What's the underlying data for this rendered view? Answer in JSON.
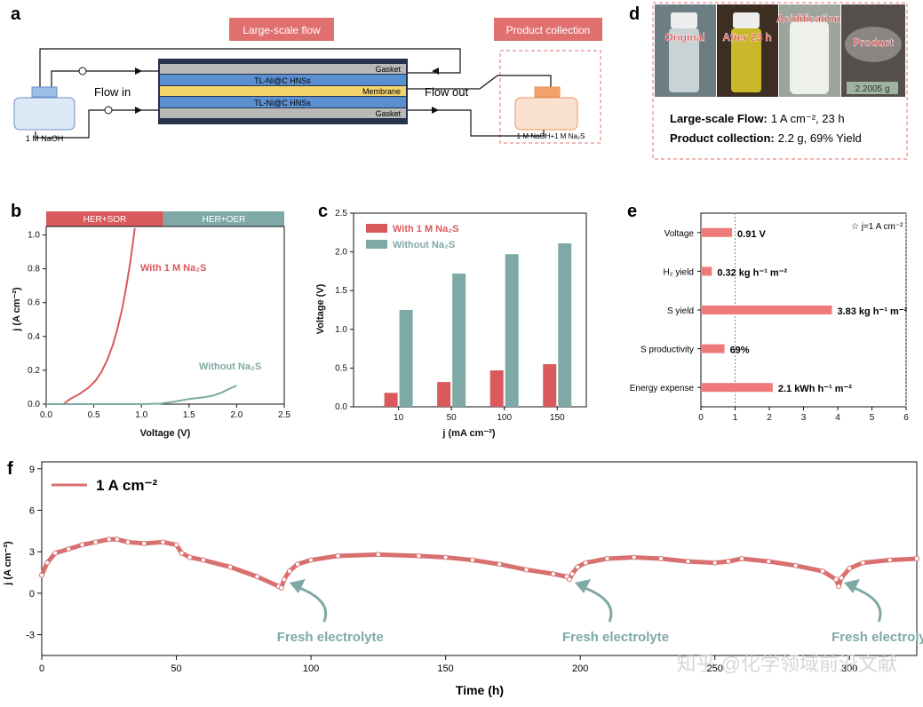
{
  "panel_a": {
    "label": "a",
    "title": "Large-scale flow",
    "collection_title": "Product collection",
    "layers": [
      "Gasket",
      "TL-Ni@C HNSs",
      "Membrane",
      "TL-Ni@C HNSs",
      "Gasket"
    ],
    "flow_in": "Flow in",
    "flow_out": "Flow out",
    "reservoir_left": "1 M NaOH",
    "reservoir_right": "1 M NaOH+1 M Na₂S",
    "colors": {
      "accent_red": "#e06b6b",
      "gasket": "#b9b9b9",
      "electrode": "#5a8fd0",
      "membrane": "#f3d36b",
      "frame": "#27324d"
    }
  },
  "panel_d": {
    "label": "d",
    "photo_labels": [
      "Original",
      "After 23 h",
      "Acidification",
      "Product"
    ],
    "balance_reading": "2.2005 g",
    "line1_key": "Large-scale Flow:",
    "line1_val": "1 A cm⁻², 23 h",
    "line2_key": "Product collection:",
    "line2_val": "2.2 g, 69% Yield"
  },
  "chart_data": [
    {
      "panel": "b",
      "type": "line",
      "xlabel": "Voltage (V)",
      "ylabel": "j (A cm⁻²)",
      "xlim": [
        0,
        2.5
      ],
      "ylim": [
        0,
        1.05
      ],
      "xticks": [
        "0.0",
        "0.5",
        "1.0",
        "1.5",
        "2.0",
        "2.5"
      ],
      "yticks": [
        "0.0",
        "0.2",
        "0.4",
        "0.6",
        "0.8",
        "1.0"
      ],
      "regions": [
        {
          "label": "HER+SOR",
          "from": 0,
          "to": 1.23,
          "color": "#d9595c"
        },
        {
          "label": "HER+OER",
          "from": 1.23,
          "to": 2.5,
          "color": "#7fa9a6"
        }
      ],
      "series": [
        {
          "name": "With 1 M Na₂S",
          "color": "#d9595c",
          "x": [
            0.18,
            0.25,
            0.35,
            0.45,
            0.52,
            0.58,
            0.64,
            0.7,
            0.75,
            0.8,
            0.84,
            0.88,
            0.91,
            0.93
          ],
          "y": [
            0.0,
            0.03,
            0.06,
            0.1,
            0.14,
            0.19,
            0.26,
            0.35,
            0.45,
            0.57,
            0.69,
            0.83,
            0.95,
            1.04
          ]
        },
        {
          "name": "Without Na₂S",
          "color": "#7fa9a6",
          "x": [
            0.0,
            0.5,
            1.0,
            1.2,
            1.35,
            1.5,
            1.65,
            1.75,
            1.85,
            1.92,
            2.0
          ],
          "y": [
            0.0,
            0.0,
            0.0,
            0.003,
            0.015,
            0.03,
            0.04,
            0.05,
            0.07,
            0.09,
            0.11
          ]
        }
      ]
    },
    {
      "panel": "c",
      "type": "bar",
      "xlabel": "j (mA cm⁻²)",
      "ylabel": "Voltage (V)",
      "ylim": [
        0,
        2.5
      ],
      "yticks": [
        "0.0",
        "0.5",
        "1.0",
        "1.5",
        "2.0",
        "2.5"
      ],
      "categories": [
        "10",
        "50",
        "100",
        "150"
      ],
      "series": [
        {
          "name": "With 1 M Na₂S",
          "color": "#d9595c",
          "values": [
            0.18,
            0.32,
            0.47,
            0.55
          ]
        },
        {
          "name": "Without Na₂S",
          "color": "#7fa9a6",
          "values": [
            1.25,
            1.72,
            1.97,
            2.11
          ]
        }
      ]
    },
    {
      "panel": "e",
      "type": "bar",
      "orientation": "horizontal",
      "legend": "☆ j=1 A cm⁻²",
      "xlim": [
        0,
        6
      ],
      "xticks": [
        "0",
        "1",
        "2",
        "3",
        "4",
        "5",
        "6"
      ],
      "color": "#f07a7a",
      "categories": [
        "Voltage",
        "H₂ yield",
        "S yield",
        "S productivity",
        "Energy expense"
      ],
      "values": [
        0.91,
        0.32,
        3.83,
        0.69,
        2.1
      ],
      "value_labels": [
        "0.91 V",
        "0.32 kg h⁻¹ m⁻²",
        "3.83 kg h⁻¹ m⁻²",
        "69%",
        "2.1 kWh h⁻¹ m⁻²"
      ]
    },
    {
      "panel": "f",
      "type": "scatter",
      "xlabel": "Time (h)",
      "ylabel": "j (A cm⁻²)",
      "xlim": [
        0,
        325
      ],
      "ylim": [
        -4.5,
        9.5
      ],
      "xticks": [
        "0",
        "50",
        "100",
        "150",
        "200",
        "250",
        "300"
      ],
      "yticks": [
        "-3",
        "0",
        "3",
        "6",
        "9"
      ],
      "series": [
        {
          "name": "1 A cm⁻²",
          "color": "#d97070",
          "x": [
            0,
            2,
            5,
            10,
            15,
            20,
            25,
            28,
            32,
            38,
            45,
            50,
            52,
            55,
            60,
            70,
            80,
            88,
            89,
            90,
            92,
            95,
            100,
            110,
            125,
            140,
            150,
            160,
            170,
            180,
            190,
            195,
            196,
            197,
            199,
            202,
            210,
            220,
            230,
            240,
            250,
            255,
            260,
            270,
            280,
            290,
            295,
            296,
            297,
            300,
            305,
            315,
            325
          ],
          "y": [
            1.3,
            2.2,
            2.9,
            3.2,
            3.5,
            3.7,
            3.9,
            3.9,
            3.7,
            3.6,
            3.7,
            3.5,
            2.9,
            2.6,
            2.4,
            1.9,
            1.2,
            0.5,
            0.4,
            1.0,
            1.6,
            2.1,
            2.4,
            2.7,
            2.8,
            2.7,
            2.6,
            2.4,
            2.1,
            1.7,
            1.4,
            1.2,
            1.0,
            1.4,
            1.9,
            2.2,
            2.5,
            2.6,
            2.5,
            2.3,
            2.2,
            2.3,
            2.5,
            2.3,
            2.0,
            1.6,
            1.0,
            0.5,
            1.1,
            1.8,
            2.2,
            2.4,
            2.5
          ]
        }
      ],
      "annotations": [
        {
          "text": "Fresh electrolyte",
          "at_x": 90
        },
        {
          "text": "Fresh electrolyte",
          "at_x": 196
        },
        {
          "text": "Fresh electrolyte",
          "at_x": 296
        }
      ]
    }
  ],
  "watermark": "知乎 @化学领域前沿文献"
}
